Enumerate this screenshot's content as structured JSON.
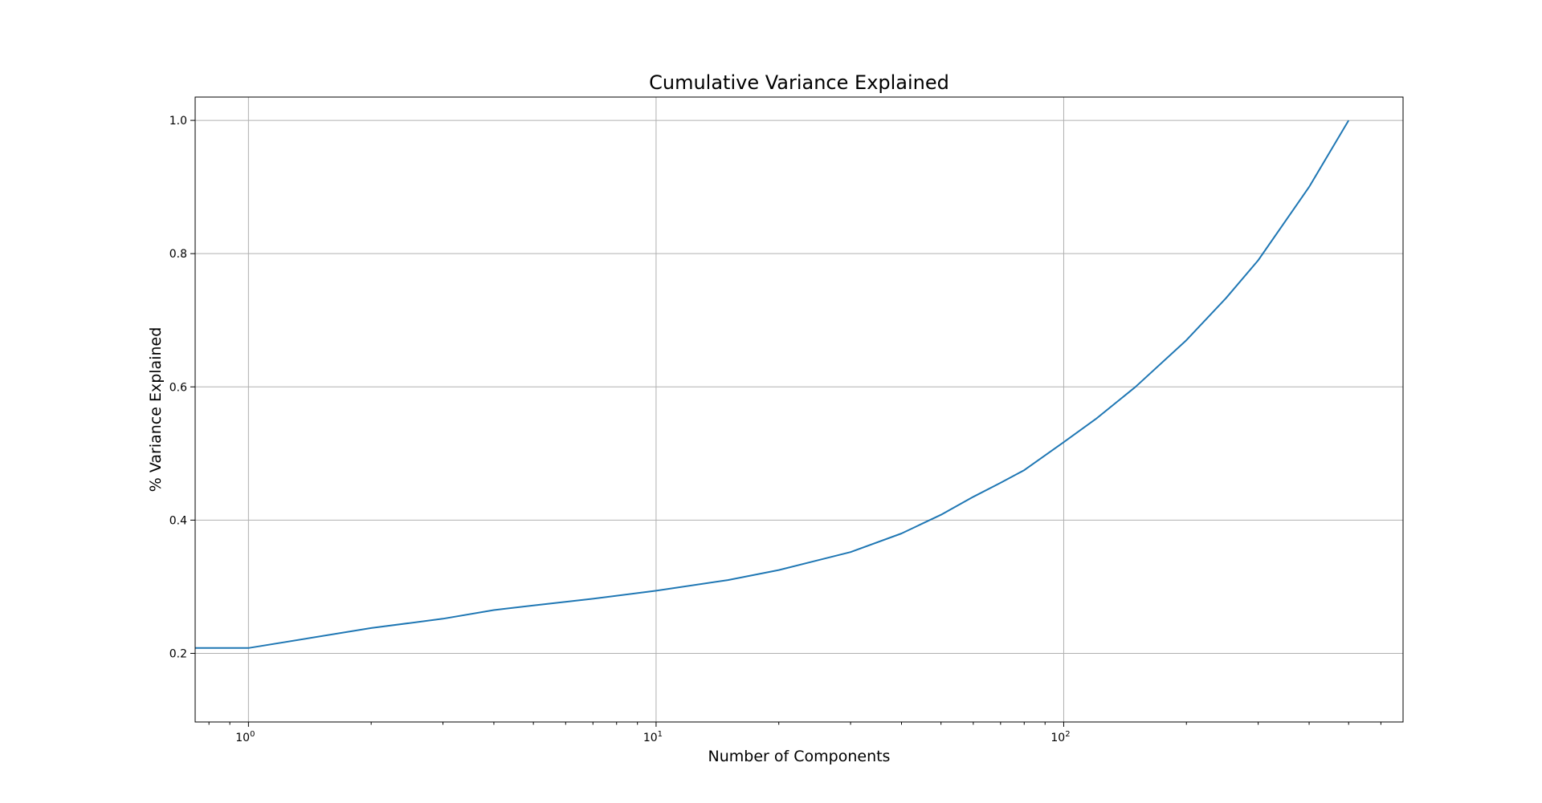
{
  "chart_data": {
    "type": "line",
    "title": "Cumulative Variance Explained",
    "xlabel": "Number of Components",
    "ylabel": "% Variance Explained",
    "xscale": "log",
    "xlim": [
      0.74,
      680
    ],
    "ylim": [
      0.097,
      1.035
    ],
    "grid": true,
    "x_ticks": [
      {
        "value": 1,
        "base": "10",
        "exp": "0"
      },
      {
        "value": 10,
        "base": "10",
        "exp": "1"
      },
      {
        "value": 100,
        "base": "10",
        "exp": "2"
      }
    ],
    "y_ticks": [
      {
        "value": 0.2,
        "label": "0.2"
      },
      {
        "value": 0.4,
        "label": "0.4"
      },
      {
        "value": 0.6,
        "label": "0.6"
      },
      {
        "value": 0.8,
        "label": "0.8"
      },
      {
        "value": 1.0,
        "label": "1.0"
      }
    ],
    "series": [
      {
        "color": "#1f77b4",
        "x": [
          0.74,
          1,
          2,
          3,
          4,
          5,
          7,
          10,
          15,
          20,
          30,
          40,
          50,
          60,
          70,
          80,
          100,
          120,
          150,
          200,
          250,
          300,
          400,
          500
        ],
        "y": [
          0.208,
          0.208,
          0.238,
          0.252,
          0.265,
          0.272,
          0.282,
          0.294,
          0.31,
          0.325,
          0.352,
          0.38,
          0.408,
          0.435,
          0.456,
          0.475,
          0.517,
          0.552,
          0.6,
          0.67,
          0.733,
          0.79,
          0.9,
          1.0
        ]
      }
    ]
  }
}
